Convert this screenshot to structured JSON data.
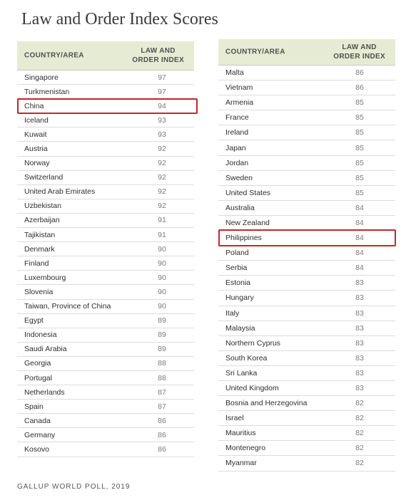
{
  "title": "Law and Order Index Scores",
  "source": "GALLUP WORLD POLL, 2019",
  "header": {
    "country": "COUNTRY/AREA",
    "index": "LAW AND\nORDER INDEX"
  },
  "highlight_color": "#c0272d",
  "header_bg": "#e6ecd3",
  "left_rows": [
    {
      "country": "Singapore",
      "score": "97"
    },
    {
      "country": "Turkmenistan",
      "score": "97"
    },
    {
      "country": "China",
      "score": "94",
      "highlight": true
    },
    {
      "country": "Iceland",
      "score": "93"
    },
    {
      "country": "Kuwait",
      "score": "93"
    },
    {
      "country": "Austria",
      "score": "92"
    },
    {
      "country": "Norway",
      "score": "92"
    },
    {
      "country": "Switzerland",
      "score": "92"
    },
    {
      "country": "United Arab Emirates",
      "score": "92"
    },
    {
      "country": "Uzbekistan",
      "score": "92"
    },
    {
      "country": "Azerbaijan",
      "score": "91"
    },
    {
      "country": "Tajikistan",
      "score": "91"
    },
    {
      "country": "Denmark",
      "score": "90"
    },
    {
      "country": "Finland",
      "score": "90"
    },
    {
      "country": "Luxembourg",
      "score": "90"
    },
    {
      "country": "Slovenia",
      "score": "90"
    },
    {
      "country": "Taiwan, Province of China",
      "score": "90"
    },
    {
      "country": "Egypt",
      "score": "89"
    },
    {
      "country": "Indonesia",
      "score": "89"
    },
    {
      "country": "Saudi Arabia",
      "score": "89"
    },
    {
      "country": "Georgia",
      "score": "88"
    },
    {
      "country": "Portugal",
      "score": "88"
    },
    {
      "country": "Netherlands",
      "score": "87"
    },
    {
      "country": "Spain",
      "score": "87"
    },
    {
      "country": "Canada",
      "score": "86"
    },
    {
      "country": "Germany",
      "score": "86"
    },
    {
      "country": "Kosovo",
      "score": "86"
    }
  ],
  "right_rows": [
    {
      "country": "Malta",
      "score": "86"
    },
    {
      "country": "Vietnam",
      "score": "86"
    },
    {
      "country": "Armenia",
      "score": "85"
    },
    {
      "country": "France",
      "score": "85"
    },
    {
      "country": "Ireland",
      "score": "85"
    },
    {
      "country": "Japan",
      "score": "85"
    },
    {
      "country": "Jordan",
      "score": "85"
    },
    {
      "country": "Sweden",
      "score": "85"
    },
    {
      "country": "United States",
      "score": "85"
    },
    {
      "country": "Australia",
      "score": "84"
    },
    {
      "country": "New Zealand",
      "score": "84"
    },
    {
      "country": "Philippines",
      "score": "84",
      "highlight": true
    },
    {
      "country": "Poland",
      "score": "84"
    },
    {
      "country": "Serbia",
      "score": "84"
    },
    {
      "country": "Estonia",
      "score": "83"
    },
    {
      "country": "Hungary",
      "score": "83"
    },
    {
      "country": "Italy",
      "score": "83"
    },
    {
      "country": "Malaysia",
      "score": "83"
    },
    {
      "country": "Northern Cyprus",
      "score": "83"
    },
    {
      "country": "South Korea",
      "score": "83"
    },
    {
      "country": "Sri Lanka",
      "score": "83"
    },
    {
      "country": "United Kingdom",
      "score": "83"
    },
    {
      "country": "Bosnia and Herzegovina",
      "score": "82"
    },
    {
      "country": "Israel",
      "score": "82"
    },
    {
      "country": "Mauritius",
      "score": "82"
    },
    {
      "country": "Montenegro",
      "score": "82"
    },
    {
      "country": "Myanmar",
      "score": "82"
    }
  ]
}
